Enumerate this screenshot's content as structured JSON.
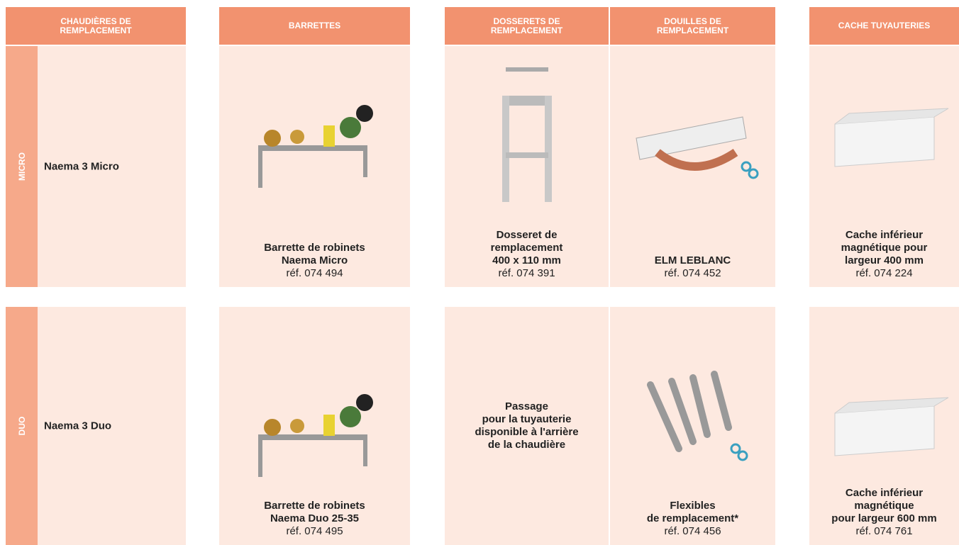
{
  "header": {
    "columns": [
      [
        "CHAUDIÈRES DE",
        "REMPLACEMENT"
      ],
      [
        "BARRETTES"
      ],
      [
        "DOSSERETS DE",
        "REMPLACEMENT"
      ],
      [
        "DOUILLES DE",
        "REMPLACEMENT"
      ],
      [
        "CACHE TUYAUTERIES"
      ]
    ]
  },
  "rows": [
    {
      "label": "MICRO",
      "name": "Naema 3 Micro",
      "cells": [
        {
          "lines": [
            "Barrette de robinets",
            "Naema Micro"
          ],
          "ref": "réf. 074 494"
        },
        {
          "lines": [
            "Dosseret de",
            "remplacement",
            "400 x 110 mm"
          ],
          "ref": "réf. 074 391"
        },
        {
          "lines": [
            "ELM LEBLANC"
          ],
          "ref": "réf. 074 452"
        },
        {
          "lines": [
            "Cache inférieur",
            "magnétique pour",
            "largeur 400 mm"
          ],
          "ref": "réf. 074 224"
        }
      ]
    },
    {
      "label": "DUO",
      "name": "Naema 3 Duo",
      "cells": [
        {
          "lines": [
            "Barrette de robinets",
            "Naema Duo 25-35"
          ],
          "ref": "réf. 074 495"
        },
        {
          "lines": [
            "Passage",
            "pour la tuyauterie",
            "disponible à l'arrière",
            "de la chaudière"
          ]
        },
        {
          "lines": [
            "Flexibles",
            "de remplacement*"
          ],
          "ref": "réf. 074 456"
        },
        {
          "lines": [
            "Cache inférieur",
            "magnétique",
            "pour largeur 600 mm"
          ],
          "ref": "réf. 074 761"
        }
      ]
    }
  ]
}
